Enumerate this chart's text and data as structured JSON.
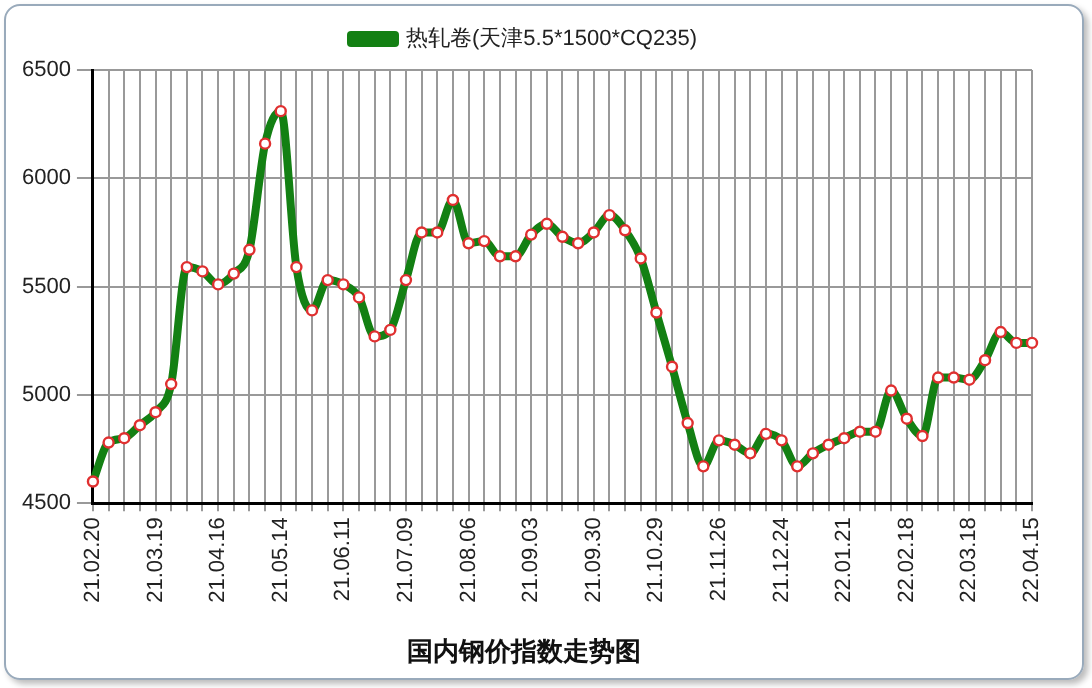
{
  "chart_data": {
    "type": "line",
    "title": "国内钢价指数走势图",
    "categories": [
      "21.02.20",
      null,
      null,
      null,
      "21.03.19",
      null,
      null,
      null,
      "21.04.16",
      null,
      null,
      null,
      "21.05.14",
      null,
      null,
      null,
      "21.06.11",
      null,
      null,
      null,
      "21.07.09",
      null,
      null,
      null,
      "21.08.06",
      null,
      null,
      null,
      "21.09.03",
      null,
      null,
      null,
      "21.09.30",
      null,
      null,
      null,
      "21.10.29",
      null,
      null,
      null,
      "21.11.26",
      null,
      null,
      null,
      "21.12.24",
      null,
      null,
      null,
      "22.01.21",
      null,
      null,
      null,
      "22.02.18",
      null,
      null,
      null,
      "22.03.18",
      null,
      null,
      null,
      "22.04.15"
    ],
    "series": [
      {
        "name": "热轧卷(天津5.5*1500*CQ235)",
        "color": "#138013",
        "values": [
          4600,
          4780,
          4800,
          4860,
          4920,
          5050,
          5590,
          5570,
          5510,
          5560,
          5670,
          6160,
          6310,
          5590,
          5390,
          5530,
          5510,
          5450,
          5270,
          5300,
          5530,
          5750,
          5750,
          5900,
          5700,
          5710,
          5640,
          5640,
          5740,
          5790,
          5730,
          5700,
          5750,
          5830,
          5760,
          5630,
          5380,
          5130,
          4870,
          4670,
          4790,
          4770,
          4730,
          4820,
          4790,
          4670,
          4730,
          4770,
          4800,
          4830,
          4830,
          5020,
          4890,
          4810,
          5080,
          5080,
          5070,
          5160,
          5290,
          5240,
          5240
        ]
      }
    ],
    "ylim": [
      4500,
      6500
    ],
    "yticks": [
      4500,
      5000,
      5500,
      6000,
      6500
    ],
    "grid": true,
    "legend": "top",
    "marker": "circle",
    "line_style": "solid"
  }
}
